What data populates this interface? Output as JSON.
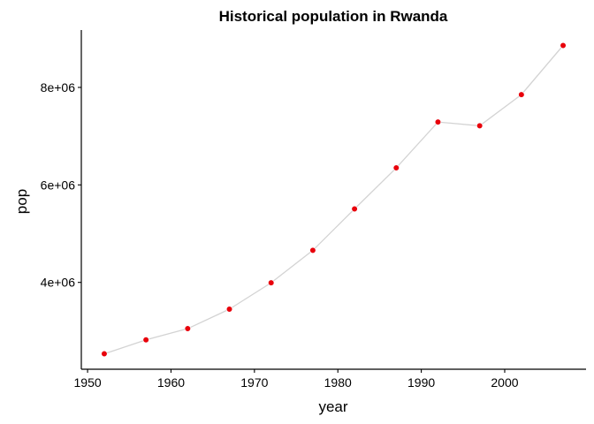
{
  "chart_data": {
    "type": "line",
    "title": "Historical population in Rwanda",
    "xlabel": "year",
    "ylabel": "pop",
    "x": [
      1952,
      1957,
      1962,
      1967,
      1972,
      1977,
      1982,
      1987,
      1992,
      1997,
      2002,
      2007
    ],
    "series": [
      {
        "values": [
          2534927,
          2822082,
          3051242,
          3451079,
          3992121,
          4657072,
          5507565,
          6349365,
          7290203,
          7212583,
          7852401,
          8860588
        ],
        "line_color": "#d3d3d3",
        "point_color": "#e8000b"
      }
    ],
    "xlim": [
      1949.25,
      2009.75
    ],
    "ylim": [
      2218644,
      9176871
    ],
    "xticks": [
      1950,
      1960,
      1970,
      1980,
      1990,
      2000
    ],
    "xtick_labels": [
      "1950",
      "1960",
      "1970",
      "1980",
      "1990",
      "2000"
    ],
    "yticks": [
      4000000,
      6000000,
      8000000
    ],
    "ytick_labels": [
      "4e+06",
      "6e+06",
      "8e+06"
    ],
    "grid": false
  }
}
